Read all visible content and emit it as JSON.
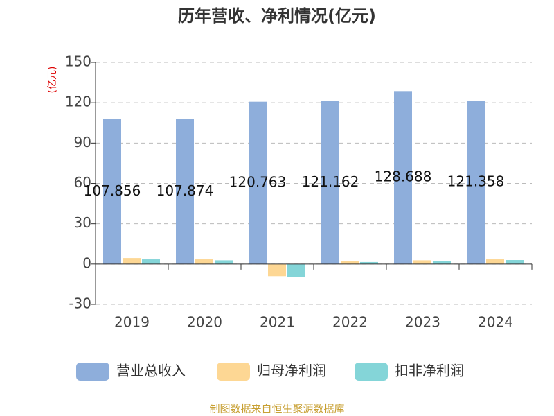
{
  "chart_data": {
    "type": "bar",
    "title": "历年营收、净利情况(亿元)",
    "y_label": "(亿元)",
    "source": "制图数据来自恒生聚源数据库",
    "categories": [
      "2019",
      "2020",
      "2021",
      "2022",
      "2023",
      "2024"
    ],
    "series": [
      {
        "name": "营业总收入",
        "color": "#8eaedb",
        "values": [
          107.856,
          107.874,
          120.763,
          121.162,
          128.688,
          121.358
        ],
        "labels": true
      },
      {
        "name": "归母净利润",
        "color": "#fdd794",
        "values": [
          4.5,
          3.5,
          -9,
          2,
          2.8,
          3.5
        ]
      },
      {
        "name": "扣非净利润",
        "color": "#84d5d8",
        "values": [
          3.5,
          2.8,
          -9.5,
          1.5,
          2.2,
          3
        ]
      }
    ],
    "ylim": [
      -30,
      150
    ],
    "yticks": [
      -30,
      0,
      30,
      60,
      90,
      120,
      150
    ],
    "grid": true
  }
}
